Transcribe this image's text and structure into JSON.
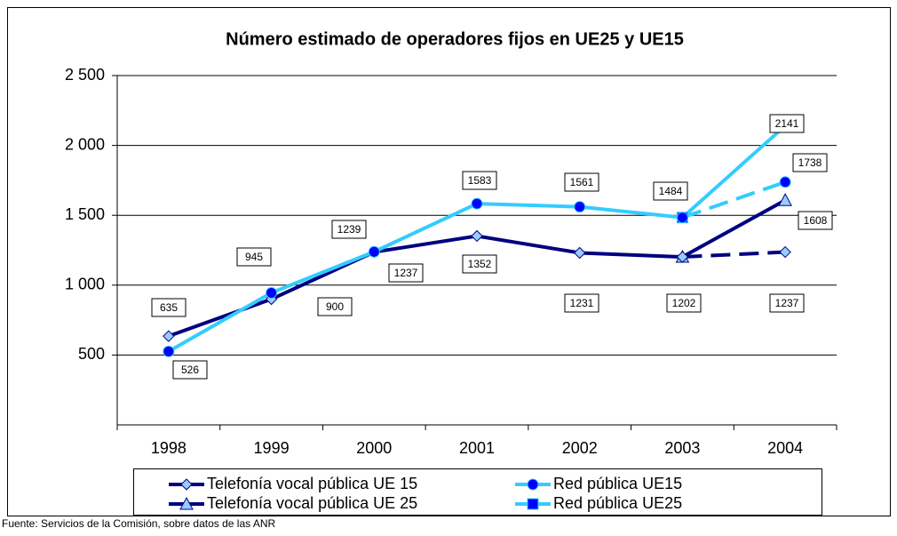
{
  "chart_data": {
    "type": "line",
    "title": "Número estimado de operadores fijos en UE25 y UE15",
    "source": "Fuente: Servicios de la Comisión, sobre datos de las ANR",
    "categories": [
      "1998",
      "1999",
      "2000",
      "2001",
      "2002",
      "2003",
      "2004"
    ],
    "ylim": [
      0,
      2500
    ],
    "yticks": [
      500,
      {
        "value": 1000,
        "label": "1 000"
      },
      {
        "value": 1500,
        "label": "1 500"
      },
      {
        "value": 2000,
        "label": "2 000"
      },
      {
        "value": 2500,
        "label": "2 500"
      }
    ],
    "grid": true,
    "legend": "bottom",
    "series": [
      {
        "name": "Telefonía vocal pública UE 15",
        "color": "#000080",
        "marker": "diamond",
        "marker_color": "#99ccff",
        "dash_from": "2003",
        "values": [
          635,
          900,
          1237,
          1352,
          1231,
          1202,
          1237
        ]
      },
      {
        "name": "Red pública UE15",
        "color": "#33ccff",
        "marker": "circle",
        "marker_color": "#0000ff",
        "dash_from": "2003",
        "values": [
          526,
          945,
          1239,
          1583,
          1561,
          1484,
          1738
        ]
      },
      {
        "name": "Telefonía vocal pública UE 25",
        "color": "#000080",
        "marker": "triangle",
        "marker_color": "#99ccff",
        "values": [
          null,
          null,
          null,
          null,
          null,
          1202,
          1608
        ]
      },
      {
        "name": "Red pública UE25",
        "color": "#33ccff",
        "marker": "square",
        "marker_color": "#0000ff",
        "values": [
          null,
          null,
          null,
          null,
          null,
          1484,
          2141
        ]
      }
    ]
  }
}
